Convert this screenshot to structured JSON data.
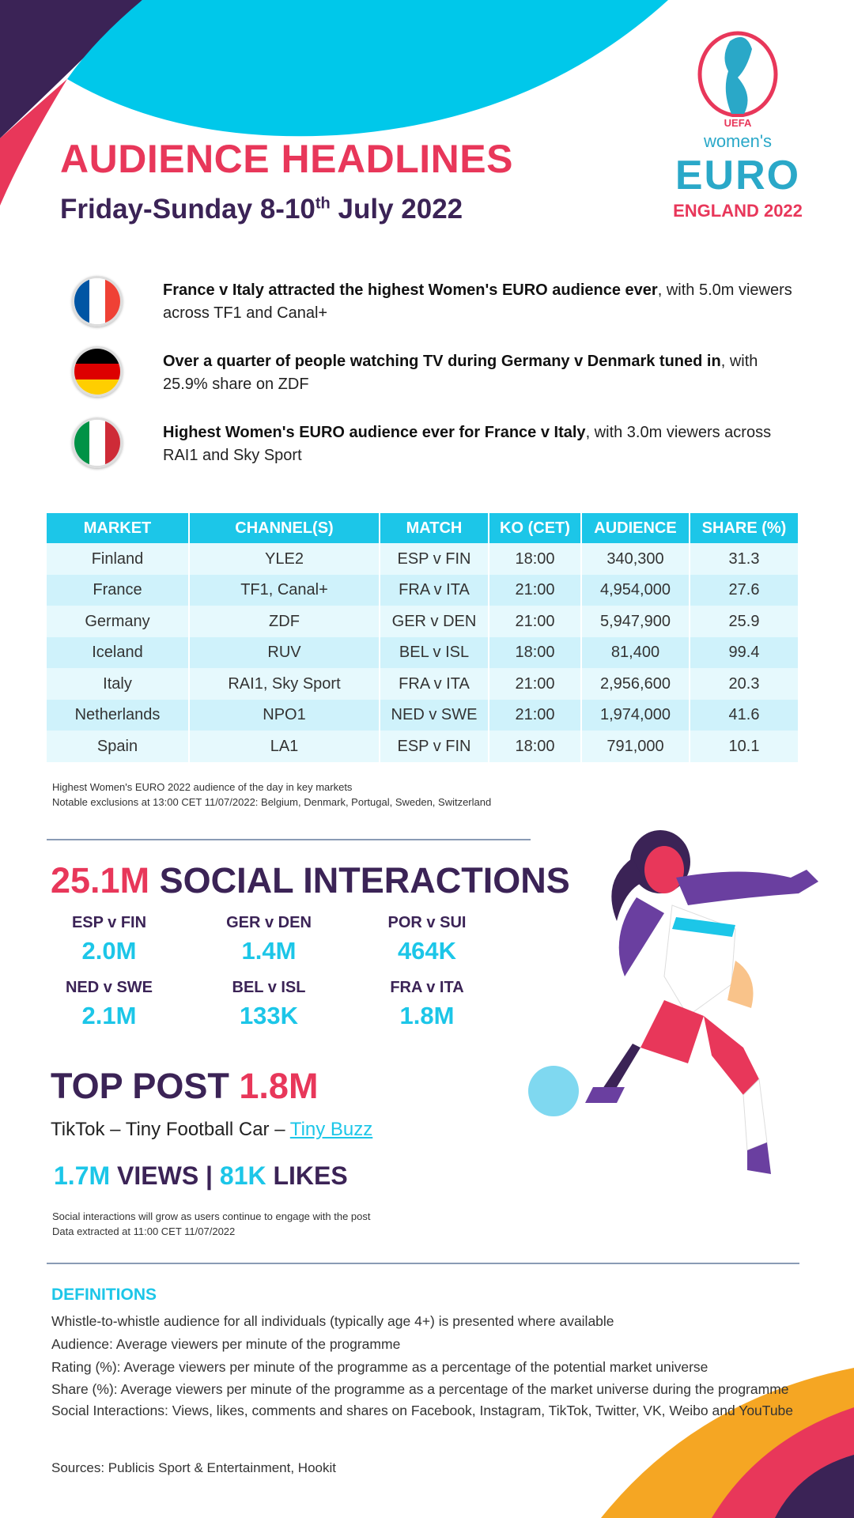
{
  "header": {
    "title": "AUDIENCE HEADLINES",
    "subtitle_pre": "Friday-Sunday 8-10",
    "subtitle_sup": "th",
    "subtitle_post": " July 2022"
  },
  "logo": {
    "uefa": "UEFA",
    "womens": "women's",
    "euro": "EURO",
    "host": "ENGLAND 2022"
  },
  "colors": {
    "pink": "#E8375A",
    "purple": "#3B2356",
    "cyan": "#1CC6E8"
  },
  "headlines": [
    {
      "flag": "france-flag",
      "bold": "France v Italy attracted the highest Women's EURO audience ever",
      "rest": ", with 5.0m viewers across TF1 and Canal+"
    },
    {
      "flag": "germany-flag",
      "bold": "Over a quarter of people watching TV during Germany v Denmark tuned in",
      "rest": ", with 25.9% share on ZDF"
    },
    {
      "flag": "italy-flag",
      "bold": "Highest Women's EURO audience ever for France v Italy",
      "rest": ", with 3.0m viewers across RAI1 and Sky Sport"
    }
  ],
  "table": {
    "headers": [
      "MARKET",
      "CHANNEL(S)",
      "MATCH",
      "KO (CET)",
      "AUDIENCE",
      "SHARE (%)"
    ],
    "rows": [
      [
        "Finland",
        "YLE2",
        "ESP v FIN",
        "18:00",
        "340,300",
        "31.3"
      ],
      [
        "France",
        "TF1, Canal+",
        "FRA v ITA",
        "21:00",
        "4,954,000",
        "27.6"
      ],
      [
        "Germany",
        "ZDF",
        "GER v DEN",
        "21:00",
        "5,947,900",
        "25.9"
      ],
      [
        "Iceland",
        "RUV",
        "BEL v ISL",
        "18:00",
        "81,400",
        "99.4"
      ],
      [
        "Italy",
        "RAI1, Sky Sport",
        "FRA v ITA",
        "21:00",
        "2,956,600",
        "20.3"
      ],
      [
        "Netherlands",
        "NPO1",
        "NED v SWE",
        "21:00",
        "1,974,000",
        "41.6"
      ],
      [
        "Spain",
        "LA1",
        "ESP v FIN",
        "18:00",
        "791,000",
        "10.1"
      ]
    ],
    "notes": [
      "Highest Women's EURO 2022 audience of the day in key markets",
      "Notable exclusions at 13:00 CET 11/07/2022: Belgium, Denmark,  Portugal, Sweden,  Switzerland"
    ]
  },
  "social": {
    "total": "25.1M",
    "label": " SOCIAL INTERACTIONS",
    "matches": [
      {
        "match": "ESP v FIN",
        "value": "2.0M"
      },
      {
        "match": "GER v DEN",
        "value": "1.4M"
      },
      {
        "match": "POR v SUI",
        "value": "464K"
      },
      {
        "match": "NED v SWE",
        "value": "2.1M"
      },
      {
        "match": "BEL v ISL",
        "value": "133K"
      },
      {
        "match": "FRA v ITA",
        "value": "1.8M"
      }
    ]
  },
  "top_post": {
    "label": "TOP POST ",
    "value": "1.8M",
    "desc": "TikTok – Tiny Football Car – ",
    "link": "Tiny Buzz",
    "views_value": "1.7M",
    "views_label": " VIEWS | ",
    "likes_value": "81K",
    "likes_label": " LIKES",
    "notes": [
      "Social interactions will grow as users continue to engage with the post",
      "Data extracted at 11:00 CET 11/07/2022"
    ]
  },
  "definitions": {
    "title": "DEFINITIONS",
    "items": [
      "Whistle-to-whistle audience for all individuals (typically age 4+) is presented where available",
      "Audience: Average viewers per minute of the programme",
      "Rating (%): Average viewers per minute of the programme as a percentage of the potential market universe",
      "Share (%): Average viewers per minute of the programme as a percentage of the market universe during the programme",
      "Social Interactions: Views, likes, comments and shares on Facebook, Instagram, TikTok, Twitter, VK, Weibo and YouTube"
    ]
  },
  "sources": "Sources: Publicis Sport & Entertainment, Hookit"
}
